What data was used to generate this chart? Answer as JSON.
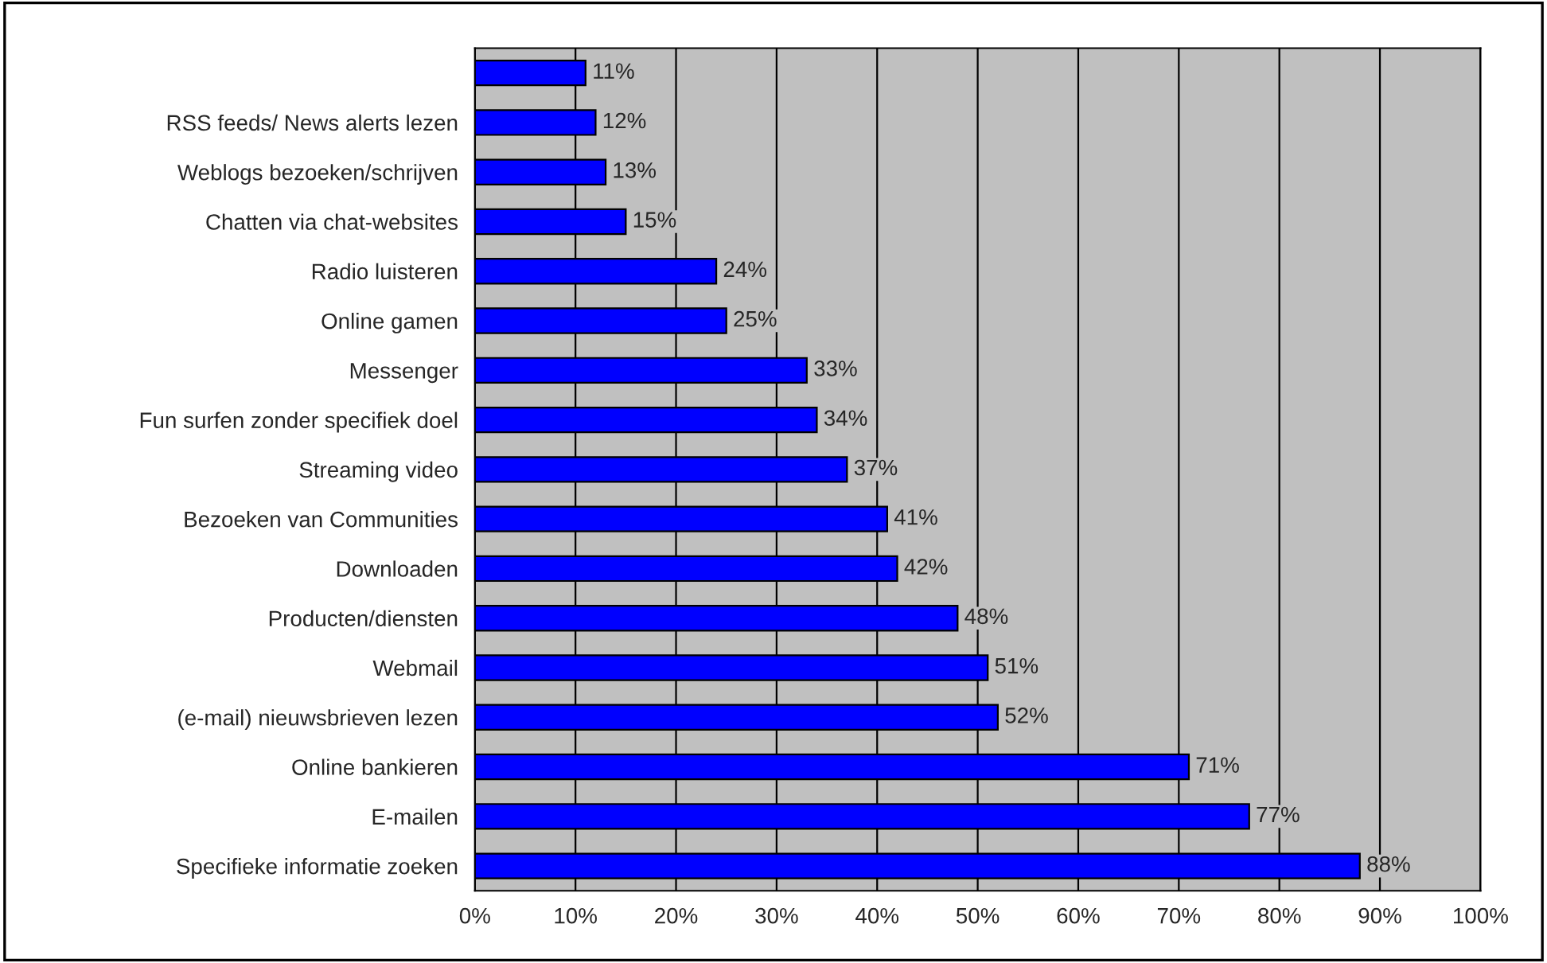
{
  "chart_data": {
    "type": "bar",
    "orientation": "horizontal",
    "categories": [
      null,
      "RSS feeds/ News alerts lezen",
      "Weblogs bezoeken/schrijven",
      "Chatten via chat-websites",
      "Radio luisteren",
      "Online gamen",
      "Messenger",
      "Fun surfen zonder specifiek doel",
      "Streaming video",
      "Bezoeken van Communities",
      "Downloaden",
      "Producten/diensten",
      "Webmail",
      "(e-mail) nieuwsbrieven lezen",
      "Online bankieren",
      "E-mailen",
      "Specifieke informatie zoeken"
    ],
    "values": [
      11,
      12,
      13,
      15,
      24,
      25,
      33,
      34,
      37,
      41,
      42,
      48,
      51,
      52,
      71,
      77,
      88
    ],
    "value_labels": [
      "11%",
      "12%",
      "13%",
      "15%",
      "24%",
      "25%",
      "33%",
      "34%",
      "37%",
      "41%",
      "42%",
      "48%",
      "51%",
      "52%",
      "71%",
      "77%",
      "88%"
    ],
    "color": "#0000ff",
    "xlim": [
      0,
      100
    ],
    "xticks": [
      {
        "value": 0,
        "label": "0%"
      },
      {
        "value": 10,
        "label": "10%"
      },
      {
        "value": 20,
        "label": "20%"
      },
      {
        "value": 30,
        "label": "30%"
      },
      {
        "value": 40,
        "label": "40%"
      },
      {
        "value": 50,
        "label": "50%"
      },
      {
        "value": 60,
        "label": "60%"
      },
      {
        "value": 70,
        "label": "70%"
      },
      {
        "value": 80,
        "label": "80%"
      },
      {
        "value": 90,
        "label": "90%"
      },
      {
        "value": 100,
        "label": "100%"
      }
    ],
    "grid": "x"
  }
}
